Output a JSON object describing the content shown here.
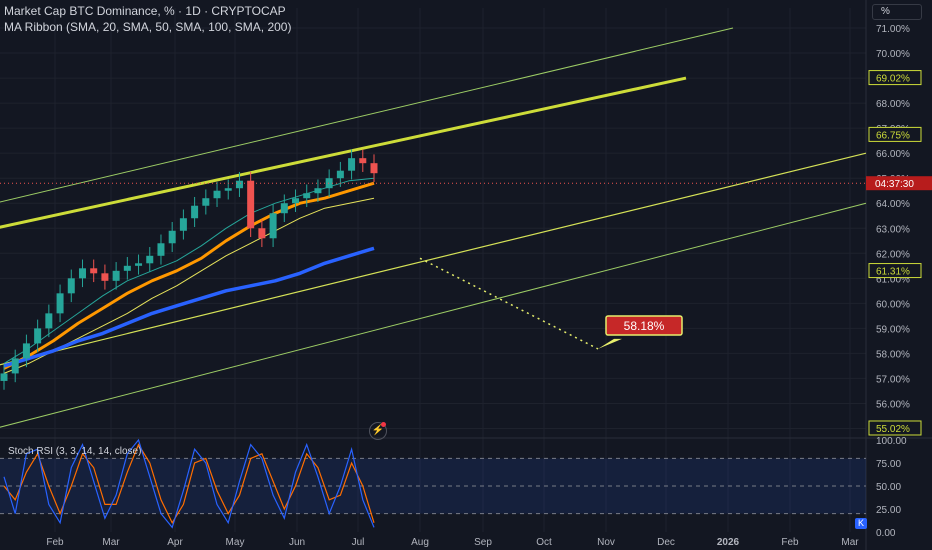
{
  "header": {
    "title": "Market Cap BTC Dominance, % · 1D · CRYPTOCAP",
    "indicator": "MA Ribbon (SMA, 20, SMA, 50, SMA, 100, SMA, 200)",
    "unit_button": "%"
  },
  "oscillator": {
    "title": "Stoch RSI (3, 3, 14, 14, close)"
  },
  "buttons": {
    "k": "K"
  },
  "colors": {
    "background": "#131722",
    "grid": "#1e222d",
    "up": "#26a69a",
    "down": "#ef5350",
    "ma20": "#26a69a",
    "ma50": "#ff9800",
    "ma100": "#e6e35b",
    "ma200": "#2962ff",
    "channel_main": "#cddc39",
    "channel_inner": "#d4e157",
    "channel_outer": "#9ccc65",
    "target": "#e6ee6c",
    "target_label_bg": "#c62828",
    "stoch_k": "#2962ff",
    "stoch_d": "#ff6d00"
  },
  "chart_data": {
    "type": "candlestick",
    "title": "Market Cap BTC Dominance, %",
    "x_ticks": [
      "Feb",
      "Mar",
      "Apr",
      "May",
      "Jun",
      "Jul",
      "Aug",
      "Sep",
      "Oct",
      "Nov",
      "Dec",
      "2026",
      "Feb",
      "Mar"
    ],
    "y_ticks": [
      "71.00%",
      "70.00%",
      "69.00%",
      "68.00%",
      "67.00%",
      "66.00%",
      "65.00%",
      "64.00%",
      "63.00%",
      "62.00%",
      "61.00%",
      "60.00%",
      "59.00%",
      "58.00%",
      "57.00%",
      "56.00%",
      "55.00%"
    ],
    "ylim": [
      54.7,
      71.8
    ],
    "price_labels": [
      {
        "text": "69.02%",
        "value": 69.02
      },
      {
        "text": "66.75%",
        "value": 66.75
      },
      {
        "text": "61.31%",
        "value": 61.31
      },
      {
        "text": "55.02%",
        "value": 55.02
      }
    ],
    "current_price": {
      "value": 64.8,
      "countdown": "04:37:30"
    },
    "closes_approx": [
      57.2,
      57.8,
      58.4,
      59.0,
      59.6,
      60.4,
      61.0,
      61.4,
      61.2,
      60.9,
      61.3,
      61.5,
      61.6,
      61.9,
      62.4,
      62.9,
      63.4,
      63.9,
      64.2,
      64.5,
      64.6,
      64.9,
      63.0,
      62.6,
      63.6,
      64.0,
      64.2,
      64.4,
      64.6,
      65.0,
      65.3,
      65.8,
      65.6,
      65.2
    ],
    "ma_ribbon": [
      {
        "name": "SMA 20",
        "values": [
          57.6,
          58.2,
          58.9,
          59.6,
          60.3,
          60.9,
          61.3,
          61.7,
          62.3,
          63.0,
          63.6,
          64.0,
          64.3,
          64.6,
          64.9,
          65.0
        ]
      },
      {
        "name": "SMA 50",
        "values": [
          57.4,
          57.9,
          58.5,
          59.2,
          59.8,
          60.4,
          60.9,
          61.3,
          61.8,
          62.5,
          63.1,
          63.6,
          64.0,
          64.2,
          64.5,
          64.8
        ]
      },
      {
        "name": "SMA 100",
        "values": [
          57.2,
          57.6,
          58.1,
          58.6,
          59.1,
          59.6,
          60.2,
          60.7,
          61.3,
          61.9,
          62.4,
          62.9,
          63.4,
          63.8,
          64.0,
          64.2
        ]
      },
      {
        "name": "SMA 200",
        "values": [
          57.5,
          57.8,
          58.1,
          58.5,
          58.8,
          59.2,
          59.6,
          59.9,
          60.2,
          60.5,
          60.7,
          60.9,
          61.2,
          61.6,
          61.9,
          62.2
        ]
      }
    ],
    "channel_lines": [
      {
        "style": "outer",
        "from": [
          "Jan",
          64.0
        ],
        "to": [
          "Dec",
          71.0
        ]
      },
      {
        "style": "main",
        "from": [
          "Jan",
          63.0
        ],
        "to": [
          "Dec",
          69.0
        ]
      },
      {
        "style": "inner",
        "from": [
          "Jan",
          57.5
        ],
        "to": [
          "Mar",
          66.0
        ]
      },
      {
        "style": "outer",
        "from": [
          "Jan",
          55.0
        ],
        "to": [
          "Mar",
          64.0
        ]
      }
    ],
    "projection": {
      "from": [
        "Aug",
        61.8
      ],
      "to": [
        "Nov",
        58.18
      ]
    },
    "target_label": "58.18%",
    "stoch_rsi": {
      "y_ticks": [
        "100.00",
        "75.00",
        "50.00",
        "25.00",
        "0.00"
      ],
      "levels": [
        80,
        50,
        20
      ],
      "k_approx": [
        60,
        20,
        85,
        90,
        30,
        10,
        70,
        95,
        55,
        15,
        40,
        85,
        100,
        60,
        20,
        5,
        45,
        90,
        75,
        30,
        10,
        55,
        95,
        80,
        40,
        15,
        65,
        95,
        60,
        20,
        50,
        90,
        35,
        5
      ],
      "d_approx": [
        50,
        35,
        65,
        85,
        50,
        20,
        50,
        85,
        70,
        30,
        30,
        65,
        95,
        75,
        35,
        10,
        30,
        75,
        80,
        45,
        20,
        40,
        80,
        85,
        55,
        25,
        50,
        85,
        70,
        35,
        40,
        75,
        50,
        10
      ]
    }
  }
}
